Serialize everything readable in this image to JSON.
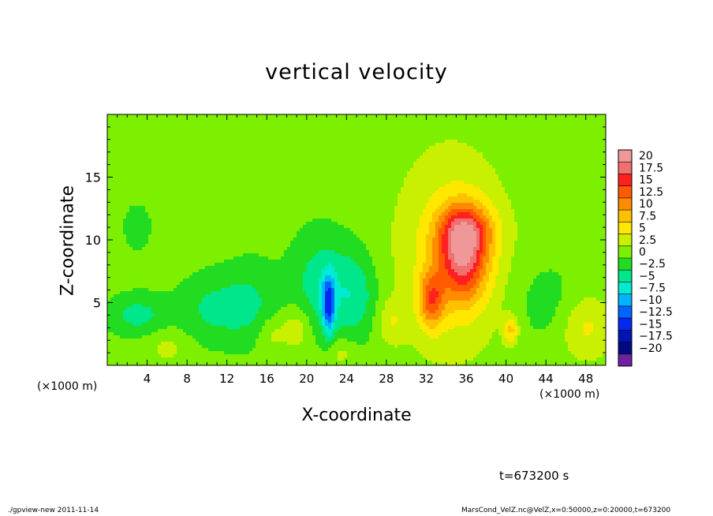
{
  "chart_data": {
    "type": "heatmap",
    "title": "vertical velocity",
    "xlabel": "X-coordinate",
    "ylabel": "Z-coordinate",
    "x_unit_label": "(×1000 m)",
    "xlim": [
      0,
      50
    ],
    "ylim": [
      0,
      20
    ],
    "x_ticks": [
      4,
      8,
      12,
      16,
      20,
      24,
      28,
      32,
      36,
      40,
      44,
      48
    ],
    "y_ticks": [
      5,
      10,
      15
    ],
    "colorbar": {
      "labels": [
        "20",
        "17.5",
        "15",
        "12.5",
        "10",
        "7.5",
        "5",
        "2.5",
        "0",
        "−2.5",
        "−5",
        "−7.5",
        "−10",
        "−12.5",
        "−15",
        "−17.5",
        "−20"
      ],
      "range": [
        -20,
        20
      ],
      "colors": [
        "#f09898",
        "#f07070",
        "#ff2020",
        "#ff5a00",
        "#ff8c00",
        "#ffc000",
        "#ffe800",
        "#c8f000",
        "#7cf000",
        "#22dc22",
        "#00e68a",
        "#00ebd2",
        "#00b4ff",
        "#0064ff",
        "#0028f0",
        "#0014b4",
        "#000a80",
        "#7020a0"
      ]
    },
    "background_value": 1.0,
    "features": [
      {
        "x": 35.7,
        "z": 8.7,
        "value": 12.5,
        "sx": 1.7,
        "sz": 2.5
      },
      {
        "x": 36.0,
        "z": 10.8,
        "value": 6.5,
        "sx": 2.0,
        "sz": 1.4
      },
      {
        "x": 32.5,
        "z": 5.2,
        "value": 9.0,
        "sx": 0.9,
        "sz": 1.6
      },
      {
        "x": 34.5,
        "z": 9.0,
        "value": 4.5,
        "sx": 3.8,
        "sz": 5.5
      },
      {
        "x": 40.5,
        "z": 2.8,
        "value": 6.0,
        "sx": 0.5,
        "sz": 0.8
      },
      {
        "x": 48.0,
        "z": 3.0,
        "value": 4.0,
        "sx": 1.8,
        "sz": 1.8
      },
      {
        "x": 22.2,
        "z": 4.8,
        "value": -10.0,
        "sx": 0.45,
        "sz": 1.6
      },
      {
        "x": 21.5,
        "z": 6.5,
        "value": -4.5,
        "sx": 2.2,
        "sz": 3.0
      },
      {
        "x": 25.0,
        "z": 5.5,
        "value": -4.0,
        "sx": 1.6,
        "sz": 2.5
      },
      {
        "x": 3.0,
        "z": 4.0,
        "value": -4.0,
        "sx": 2.2,
        "sz": 1.2
      },
      {
        "x": 10.5,
        "z": 4.5,
        "value": -3.5,
        "sx": 2.5,
        "sz": 2.0
      },
      {
        "x": 14.5,
        "z": 5.0,
        "value": -3.0,
        "sx": 2.0,
        "sz": 2.5
      },
      {
        "x": 3.0,
        "z": 11.0,
        "value": -1.5,
        "sx": 1.5,
        "sz": 2.0
      },
      {
        "x": 19.0,
        "z": 3.0,
        "value": 3.5,
        "sx": 1.0,
        "sz": 1.2
      },
      {
        "x": 16.5,
        "z": 2.5,
        "value": 2.5,
        "sx": 1.0,
        "sz": 1.0
      },
      {
        "x": 28.5,
        "z": 3.5,
        "value": 3.0,
        "sx": 1.0,
        "sz": 1.2
      },
      {
        "x": 23.5,
        "z": 1.0,
        "value": 2.5,
        "sx": 1.0,
        "sz": 0.8
      },
      {
        "x": 6.0,
        "z": 1.5,
        "value": 2.0,
        "sx": 1.5,
        "sz": 1.0
      },
      {
        "x": 44.0,
        "z": 5.0,
        "value": -2.0,
        "sx": 2.5,
        "sz": 2.5
      }
    ]
  },
  "annotations": {
    "time": "t=673200 s",
    "footer_left": "./gpview-new  2011-11-14",
    "footer_right": "MarsCond_VelZ.nc@VelZ,x=0:50000,z=0:20000,t=673200"
  }
}
